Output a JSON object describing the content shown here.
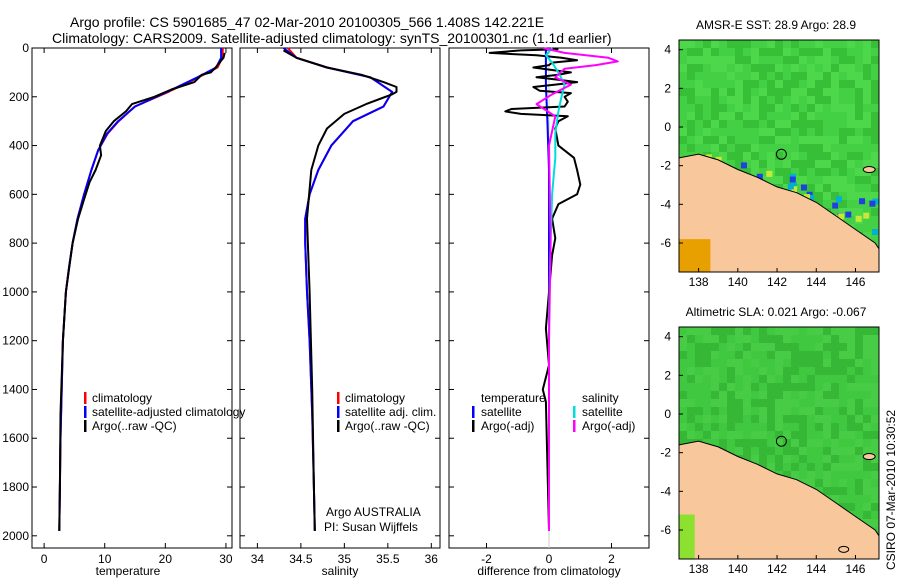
{
  "header": {
    "line1": "Argo profile: CS 5901685_47 02-Mar-2010 20100305_566 1.408S 142.221E",
    "line2": "Climatology: CARS2009. Satellite-adjusted climatology: synTS_20100301.nc (1.1d earlier)"
  },
  "footer_stamp": "CSIRO 07-Mar-2010 10:30:52",
  "colors": {
    "climatology": "#ff0000",
    "satellite": "#0000ff",
    "argo": "#000000",
    "sal_satellite": "#00dddd",
    "sal_argo": "#ff00ff",
    "land": "#f8c89c",
    "ocean_green": "#3ccc3c"
  },
  "chart_data": [
    {
      "type": "line",
      "id": "temperature",
      "xlabel": "temperature",
      "ylabel": "",
      "xlim": [
        -2,
        31
      ],
      "ylim": [
        2050,
        0
      ],
      "xticks": [
        0,
        10,
        20,
        30
      ],
      "yticks": [
        0,
        200,
        400,
        600,
        800,
        1000,
        1200,
        1400,
        1600,
        1800,
        2000
      ],
      "legend": [
        "climatology",
        "satellite-adjusted climatology",
        "Argo(..raw -QC)"
      ],
      "series": [
        {
          "name": "climatology",
          "color": "red",
          "x": [
            29.5,
            29.4,
            28.6,
            25.5,
            20.5,
            15,
            12.3,
            10.5,
            8.9,
            7.8,
            6.6,
            5.5,
            4.7,
            4.1,
            3.6,
            3.1,
            2.9,
            2.7,
            2.6,
            2.5
          ],
          "y": [
            0,
            40,
            80,
            120,
            180,
            240,
            300,
            350,
            420,
            500,
            600,
            700,
            800,
            900,
            1000,
            1200,
            1400,
            1600,
            1800,
            1980
          ]
        },
        {
          "name": "satellite-adjusted climatology",
          "color": "blue",
          "x": [
            29.2,
            29.2,
            28.4,
            25.3,
            20.3,
            15,
            12.2,
            10.4,
            8.9,
            7.8,
            6.6,
            5.5,
            4.7,
            4.1,
            3.6,
            3.1,
            2.9,
            2.7,
            2.6,
            2.5
          ],
          "y": [
            0,
            40,
            80,
            120,
            180,
            240,
            300,
            350,
            420,
            500,
            600,
            700,
            800,
            900,
            1000,
            1200,
            1400,
            1600,
            1800,
            1980
          ]
        },
        {
          "name": "Argo(..raw -QC)",
          "color": "black",
          "x": [
            29.8,
            29.6,
            28.3,
            27.5,
            26,
            24.8,
            21,
            18.2,
            14.5,
            13.5,
            11.5,
            10.2,
            9.2,
            9.4,
            8.5,
            7.5,
            6.6,
            5.6,
            4.7,
            3.6,
            3.1,
            2.7,
            2.6,
            2.5
          ],
          "y": [
            20,
            40,
            80,
            100,
            110,
            140,
            170,
            200,
            230,
            260,
            300,
            340,
            400,
            440,
            500,
            550,
            620,
            700,
            800,
            1000,
            1200,
            1500,
            1800,
            1980
          ]
        }
      ]
    },
    {
      "type": "line",
      "id": "salinity",
      "xlabel": "salinity",
      "ylabel": "",
      "xlim": [
        33.8,
        36.1
      ],
      "ylim": [
        2050,
        0
      ],
      "xticks": [
        34,
        34.5,
        35,
        35.5,
        36
      ],
      "legend": [
        "climatology",
        "satellite adj. clim.",
        "Argo(..raw -QC)"
      ],
      "annotations": [
        "Argo AUSTRALIA",
        "PI: Susan Wijffels"
      ],
      "series": [
        {
          "name": "climatology",
          "color": "red",
          "x": [
            34.35,
            34.45,
            34.8,
            35.3,
            35.55,
            35.45,
            35.1,
            34.85,
            34.7,
            34.6,
            34.55,
            34.55,
            34.57,
            34.6,
            34.63,
            34.65,
            34.66
          ],
          "y": [
            0,
            40,
            80,
            120,
            180,
            240,
            300,
            400,
            500,
            600,
            700,
            800,
            1000,
            1200,
            1500,
            1800,
            1980
          ]
        },
        {
          "name": "satellite adj. clim.",
          "color": "blue",
          "x": [
            34.3,
            34.45,
            34.8,
            35.3,
            35.55,
            35.45,
            35.1,
            34.85,
            34.7,
            34.6,
            34.55,
            34.55,
            34.57,
            34.6,
            34.63,
            34.65,
            34.66
          ],
          "y": [
            0,
            40,
            80,
            120,
            180,
            240,
            300,
            400,
            500,
            600,
            700,
            800,
            1000,
            1200,
            1500,
            1800,
            1980
          ]
        },
        {
          "name": "Argo(..raw -QC)",
          "color": "black",
          "x": [
            34.3,
            34.35,
            34.45,
            34.8,
            35.2,
            35.45,
            35.6,
            35.6,
            35.55,
            35.25,
            35.0,
            34.8,
            34.7,
            34.62,
            34.57,
            34.6,
            34.63,
            34.65,
            34.66
          ],
          "y": [
            10,
            20,
            40,
            80,
            110,
            140,
            160,
            180,
            190,
            230,
            270,
            330,
            400,
            500,
            700,
            1000,
            1400,
            1800,
            1980
          ]
        }
      ]
    },
    {
      "type": "line",
      "id": "difference",
      "xlabel": "difference from climatology",
      "ylabel": "",
      "xlim": [
        -3.2,
        3.2
      ],
      "ylim": [
        2050,
        0
      ],
      "xticks": [
        -2,
        0,
        2
      ],
      "legend": [
        "temperature",
        "satellite",
        "Argo(-adj)",
        "salinity",
        "satellite",
        "Argo(-adj)"
      ],
      "series": [
        {
          "name": "temperature satellite",
          "color": "blue",
          "x": [
            -0.1,
            -0.1,
            -0.1,
            -0.1,
            -0.05,
            0,
            0,
            0,
            0
          ],
          "y": [
            0,
            40,
            80,
            150,
            300,
            500,
            800,
            1200,
            1980
          ]
        },
        {
          "name": "temperature Argo(-adj)",
          "color": "black",
          "x": [
            0.3,
            -0.9,
            -1.9,
            -0.4,
            0.4,
            0.9,
            0.1,
            0,
            -0.5,
            0.1,
            0.7,
            0.3,
            -0.4,
            0.3,
            0.9,
            0.2,
            -0.5,
            -0.3,
            0.7,
            0.5,
            0.6,
            0.5,
            -1.2,
            -1.4,
            -0.9,
            0.6,
            0.3,
            0.2,
            0.3,
            0.8,
            0.9,
            1.0,
            0.9,
            0.3,
            0.1,
            0.2,
            0.1,
            0,
            -0.1,
            0,
            -0.2,
            -0.1,
            0
          ],
          "y": [
            5,
            10,
            20,
            30,
            40,
            50,
            60,
            70,
            80,
            90,
            100,
            110,
            120,
            130,
            140,
            150,
            160,
            175,
            185,
            200,
            220,
            240,
            250,
            260,
            270,
            280,
            300,
            330,
            400,
            450,
            500,
            560,
            600,
            640,
            700,
            780,
            850,
            1000,
            1150,
            1300,
            1400,
            1450,
            1980
          ]
        },
        {
          "name": "salinity satellite",
          "color": "cyan",
          "x": [
            0.1,
            -0.1,
            0.1,
            0.3,
            0.5,
            0.4,
            0.3,
            0.2,
            0.2,
            0.1,
            0.05,
            0,
            0,
            0
          ],
          "y": [
            0,
            30,
            60,
            100,
            150,
            200,
            260,
            350,
            450,
            600,
            800,
            1100,
            1500,
            1980
          ]
        },
        {
          "name": "salinity Argo(-adj)",
          "color": "magenta",
          "x": [
            -0.2,
            0.5,
            1.9,
            2.2,
            1.5,
            0.5,
            0.2,
            0.7,
            0.1,
            -0.4,
            0.2,
            0,
            0.05,
            0,
            0
          ],
          "y": [
            0,
            20,
            40,
            55,
            70,
            85,
            120,
            150,
            190,
            230,
            280,
            400,
            800,
            1200,
            1980
          ]
        }
      ]
    },
    {
      "type": "heatmap",
      "id": "sst_map",
      "title": "AMSR-E SST: 28.9 Argo: 28.9",
      "xlim": [
        137,
        147.2
      ],
      "ylim": [
        -7.5,
        4.5
      ],
      "xticks": [
        138,
        140,
        142,
        144,
        146
      ],
      "yticks": [
        -6,
        -4,
        -2,
        0,
        2,
        4
      ],
      "argo_position": [
        142.221,
        -1.408
      ]
    },
    {
      "type": "heatmap",
      "id": "sla_map",
      "title": "Altimetric SLA: 0.021 Argo: -0.067",
      "xlim": [
        137,
        147.2
      ],
      "ylim": [
        -7.5,
        4.5
      ],
      "xticks": [
        138,
        140,
        142,
        144,
        146
      ],
      "yticks": [
        -6,
        -4,
        -2,
        0,
        2,
        4
      ],
      "argo_position": [
        142.221,
        -1.408
      ]
    }
  ]
}
